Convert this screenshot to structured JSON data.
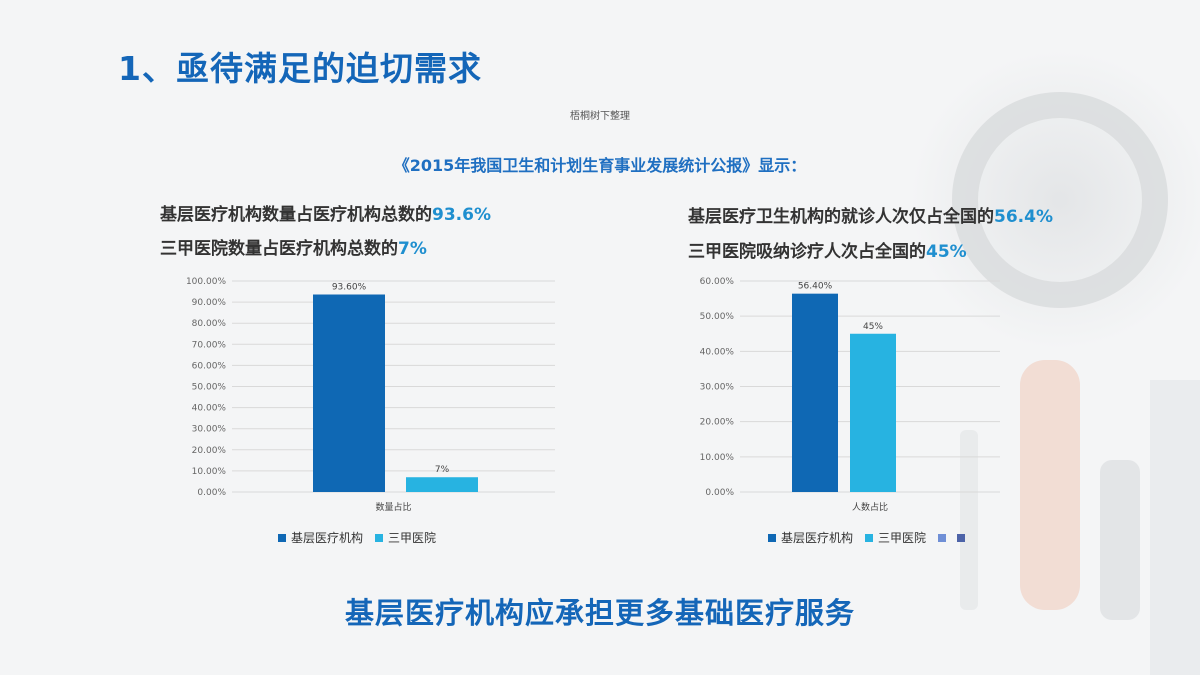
{
  "slide": {
    "title": "1、亟待满足的迫切需求",
    "source_note": "梧桐树下整理",
    "report": "《2015年我国卫生和计划生育事业发展统计公报》显示：",
    "conclusion": "基层医疗机构应承担更多基础医疗服务"
  },
  "left_stats": [
    {
      "prefix": "基层医疗机构数量占医疗机构总数的",
      "value": "93.6%"
    },
    {
      "prefix": "三甲医院数量占医疗机构总数的",
      "value": "7%"
    }
  ],
  "right_stats": [
    {
      "prefix": "基层医疗卫生机构的就诊人次仅占全国的",
      "value": "56.4%"
    },
    {
      "prefix": "三甲医院吸纳诊疗人次占全国的",
      "value": "45%"
    }
  ],
  "colors": {
    "series_dark": "#0f68b4",
    "series_light": "#27b3e1",
    "legend_extra_1": "#6f8fd6",
    "legend_extra_2": "#4d63a8",
    "highlight": "#1f8fcf",
    "title": "#1466b8"
  },
  "chart_data": [
    {
      "type": "bar",
      "categories": [
        "数量占比"
      ],
      "series": [
        {
          "name": "基层医疗机构",
          "values": [
            93.6
          ],
          "label": "93.60%"
        },
        {
          "name": "三甲医院",
          "values": [
            7
          ],
          "label": "7%"
        }
      ],
      "ylim": [
        0,
        100
      ],
      "yticks": [
        "0.00%",
        "10.00%",
        "20.00%",
        "30.00%",
        "40.00%",
        "50.00%",
        "60.00%",
        "70.00%",
        "80.00%",
        "90.00%",
        "100.00%"
      ],
      "grid": true,
      "legend_position": "bottom",
      "legend": [
        "基层医疗机构",
        "三甲医院"
      ]
    },
    {
      "type": "bar",
      "categories": [
        "人数占比"
      ],
      "series": [
        {
          "name": "基层医疗机构",
          "values": [
            56.4
          ],
          "label": "56.40%"
        },
        {
          "name": "三甲医院",
          "values": [
            45
          ],
          "label": "45%"
        }
      ],
      "ylim": [
        0,
        60
      ],
      "yticks": [
        "0.00%",
        "10.00%",
        "20.00%",
        "30.00%",
        "40.00%",
        "50.00%",
        "60.00%"
      ],
      "grid": true,
      "legend_position": "bottom",
      "legend": [
        "基层医疗机构",
        "三甲医院",
        "",
        ""
      ]
    }
  ]
}
